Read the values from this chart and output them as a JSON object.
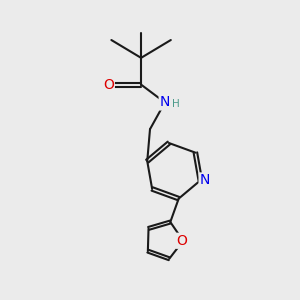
{
  "bg_color": "#ebebeb",
  "bond_color": "#1a1a1a",
  "bond_width": 1.5,
  "atom_colors": {
    "O": "#dd0000",
    "N": "#0000ee",
    "H": "#4a9a8a",
    "C": "#1a1a1a"
  },
  "font_size_atoms": 10,
  "font_size_H": 7.5
}
